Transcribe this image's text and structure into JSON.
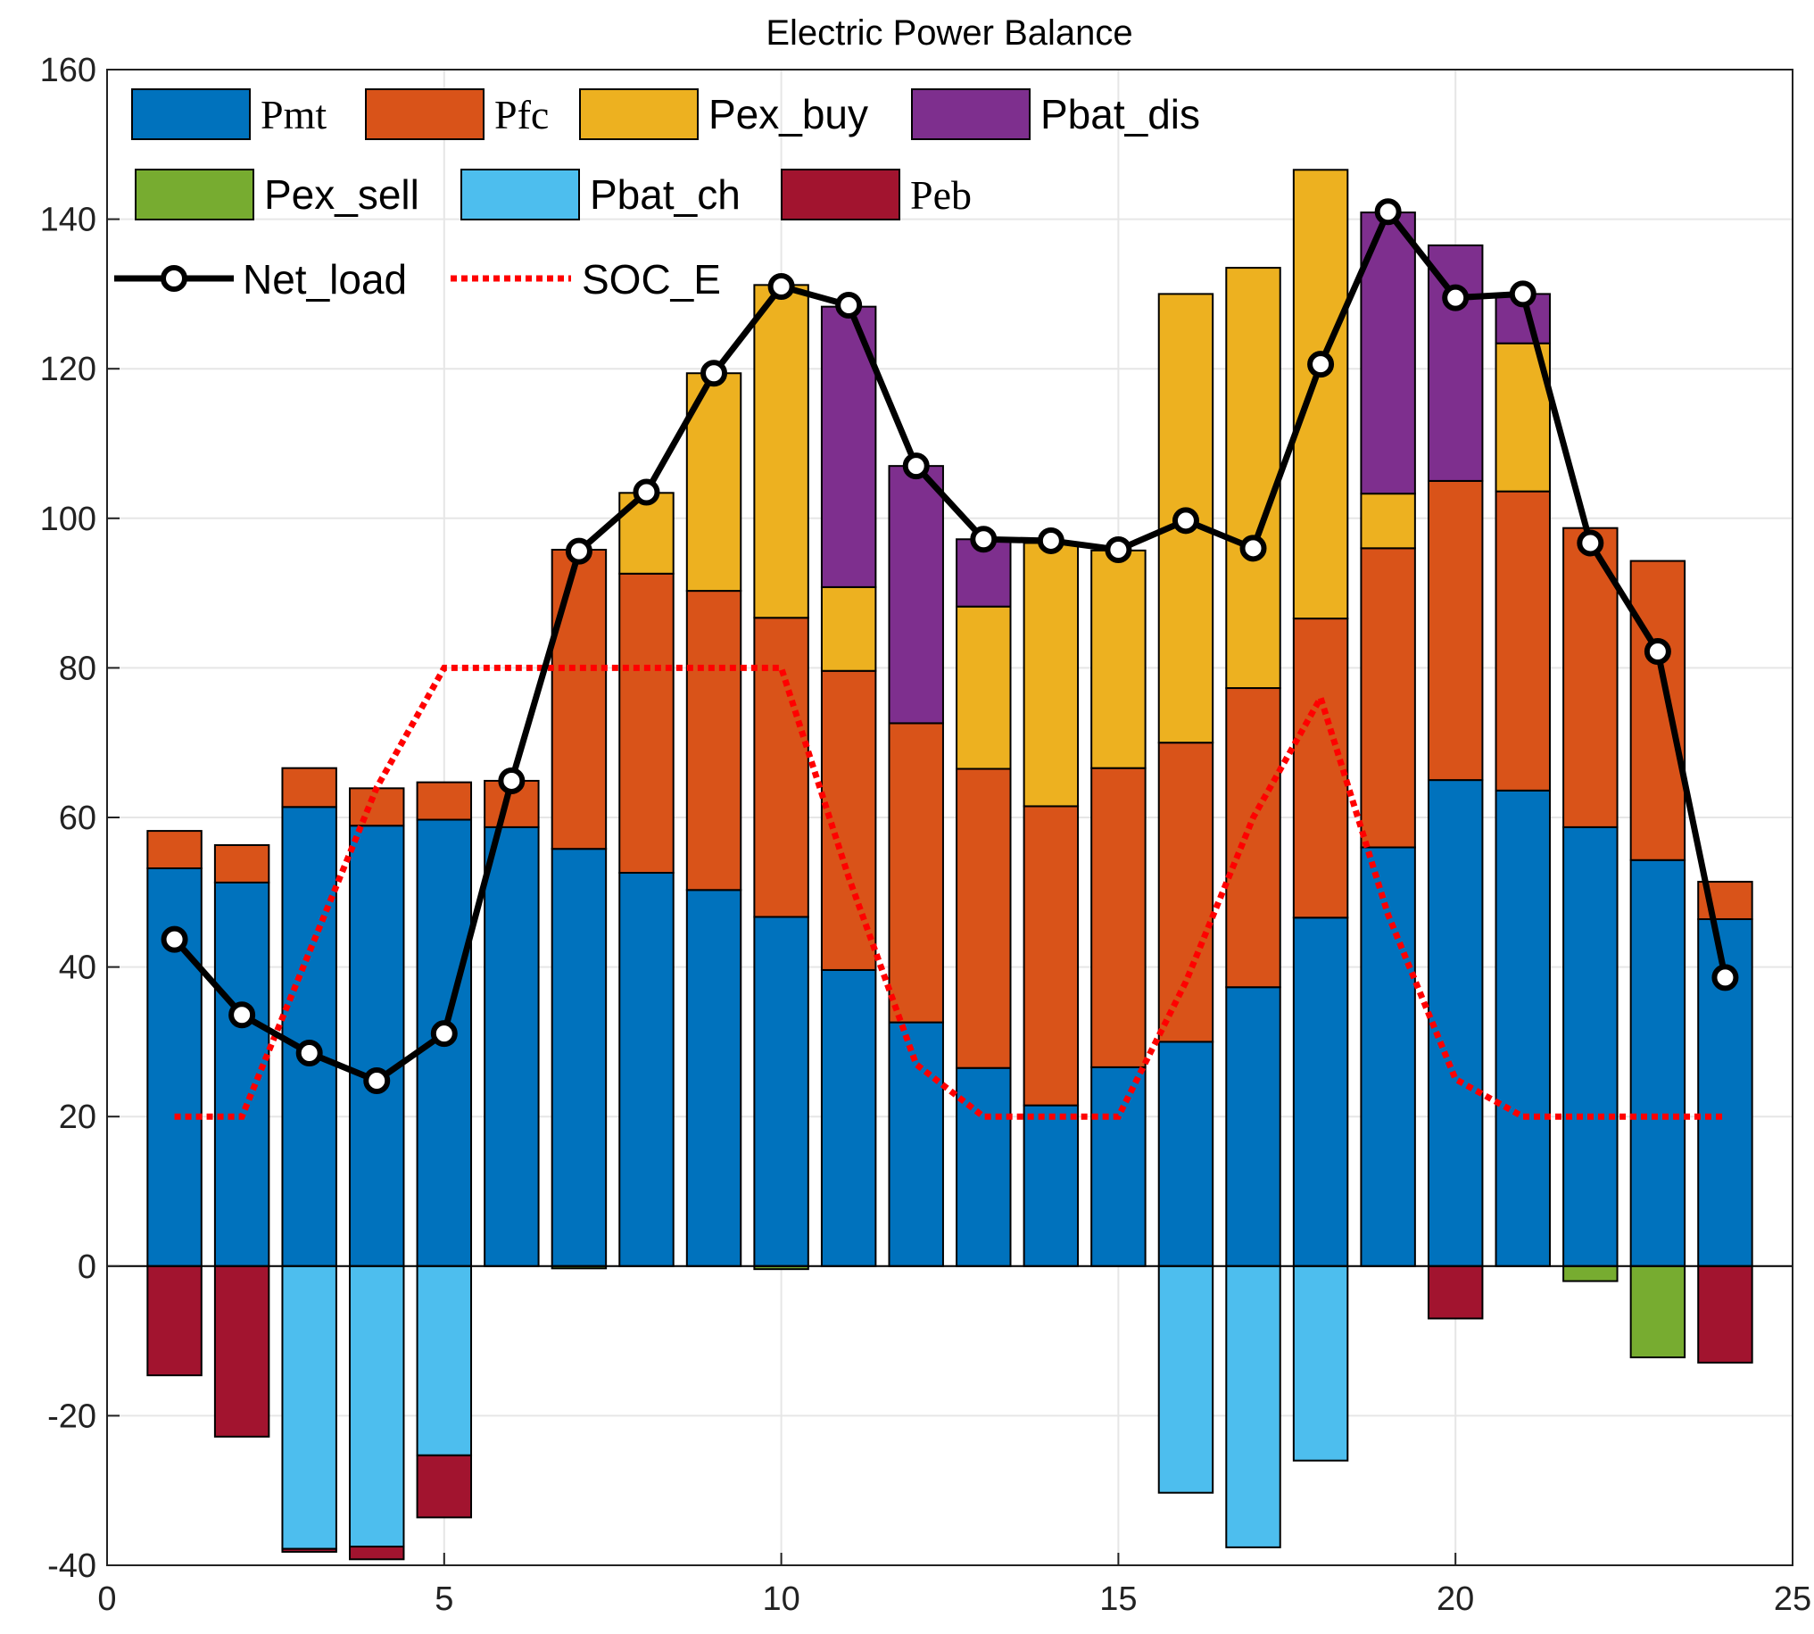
{
  "chart_data": {
    "type": "bar",
    "title": "Electric Power Balance",
    "xlabel": "",
    "ylabel": "",
    "xlim": [
      0,
      25
    ],
    "ylim": [
      -40,
      160
    ],
    "xticks": [
      "0",
      "5",
      "10",
      "15",
      "20",
      "25"
    ],
    "yticks": [
      "-40",
      "-20",
      "0",
      "20",
      "40",
      "60",
      "80",
      "100",
      "120",
      "140",
      "160"
    ],
    "grid": true,
    "legend_position": "top-left",
    "categories": [
      1,
      2,
      3,
      4,
      5,
      6,
      7,
      8,
      9,
      10,
      11,
      12,
      13,
      14,
      15,
      16,
      17,
      18,
      19,
      20,
      21,
      22,
      23,
      24
    ],
    "series": [
      {
        "name": "Pmt",
        "color": "#0072BD",
        "font": "serif",
        "stack": "positive",
        "values": [
          53.2,
          51.3,
          61.4,
          58.9,
          59.7,
          58.7,
          55.8,
          52.6,
          50.3,
          46.7,
          39.6,
          32.6,
          26.5,
          21.5,
          26.6,
          30.0,
          37.3,
          46.6,
          56.0,
          65.0,
          63.6,
          58.7,
          54.3,
          46.4
        ]
      },
      {
        "name": "Pfc",
        "color": "#D95319",
        "font": "serif",
        "stack": "positive",
        "values": [
          5.0,
          5.0,
          5.2,
          5.0,
          5.0,
          6.2,
          40.0,
          40.0,
          40.0,
          40.0,
          40.0,
          40.0,
          40.0,
          40.0,
          40.0,
          40.0,
          40.0,
          40.0,
          40.0,
          40.0,
          40.0,
          40.0,
          40.0,
          5.0
        ]
      },
      {
        "name": "Pex_buy",
        "color": "#EDB120",
        "font": "sans",
        "stack": "positive",
        "values": [
          0,
          0,
          0,
          0,
          0,
          0,
          0,
          10.8,
          29.1,
          44.5,
          11.2,
          0,
          21.7,
          35.2,
          29.1,
          60.0,
          56.2,
          60.0,
          7.3,
          0,
          19.8,
          0,
          0,
          0
        ]
      },
      {
        "name": "Pbat_dis",
        "color": "#7E2F8E",
        "font": "sans",
        "stack": "positive",
        "values": [
          0,
          0,
          0,
          0,
          0,
          0,
          0,
          0,
          0,
          0,
          37.5,
          34.4,
          9.0,
          0,
          0,
          0,
          0,
          0,
          37.6,
          31.5,
          6.6,
          0,
          0,
          0
        ]
      },
      {
        "name": "Pex_sell",
        "color": "#77AC30",
        "font": "sans",
        "stack": "negative",
        "values": [
          0,
          0,
          0,
          0,
          0,
          0,
          -0.3,
          0,
          0,
          -0.4,
          0,
          0,
          0,
          0,
          0,
          0,
          0,
          0,
          0,
          0,
          0,
          -2.0,
          -12.2,
          0
        ]
      },
      {
        "name": "Pbat_ch",
        "color": "#4DBEEE",
        "font": "sans",
        "stack": "negative",
        "values": [
          0,
          0,
          -37.8,
          -37.5,
          -25.3,
          0,
          0,
          0,
          0,
          0,
          0,
          0,
          0,
          0,
          0,
          -30.3,
          -37.6,
          -26.0,
          0,
          0,
          0,
          0,
          0,
          0
        ]
      },
      {
        "name": "Peb",
        "color": "#A2142F",
        "font": "serif",
        "stack": "negative",
        "values": [
          -14.6,
          -22.8,
          -0.4,
          -1.7,
          -8.3,
          0,
          0,
          0,
          0,
          0,
          0,
          0,
          0,
          0,
          0,
          0,
          0,
          0,
          0,
          -7.0,
          0,
          0,
          0,
          -12.9
        ]
      }
    ],
    "lines": [
      {
        "name": "Net_load",
        "color": "#000000",
        "style": "solid-circle",
        "font": "sans",
        "x": [
          1,
          2,
          3,
          4,
          5,
          6,
          7,
          8,
          9,
          10,
          11,
          12,
          13,
          14,
          15,
          16,
          17,
          18,
          19,
          20,
          21,
          22,
          23,
          24
        ],
        "values": [
          43.7,
          33.6,
          28.5,
          24.8,
          31.1,
          64.9,
          95.6,
          103.5,
          119.4,
          131.0,
          128.5,
          107.0,
          97.2,
          97.0,
          95.8,
          99.7,
          96.0,
          120.6,
          141.0,
          129.5,
          130.0,
          96.7,
          82.2,
          38.6
        ]
      },
      {
        "name": "SOC_E",
        "color": "#FF0000",
        "style": "dotted",
        "font": "sans",
        "x": [
          1,
          2,
          3,
          4,
          5,
          6,
          7,
          8,
          9,
          10,
          11,
          12,
          13,
          14,
          15,
          16,
          17,
          18,
          19,
          20,
          21,
          22,
          23,
          24
        ],
        "values": [
          20,
          20,
          42,
          64,
          80,
          80,
          80,
          80,
          80,
          80,
          52,
          27,
          20,
          20,
          20,
          38,
          60,
          76,
          47,
          25,
          20,
          20,
          20,
          20
        ]
      }
    ]
  }
}
